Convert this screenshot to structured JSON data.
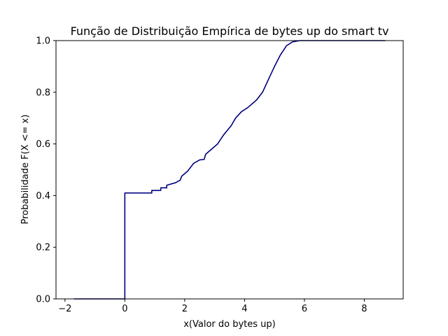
{
  "chart_data": {
    "type": "line",
    "title": "Função de Distribuição Empírica de bytes up do smart tv",
    "xlabel": "x(Valor do bytes up)",
    "ylabel": "Probabilidade F(X <= x)",
    "xlim": [
      -2.3,
      9.3
    ],
    "ylim": [
      0.0,
      1.0
    ],
    "xticks": [
      -2,
      0,
      2,
      4,
      6,
      8
    ],
    "yticks": [
      0.0,
      0.2,
      0.4,
      0.6,
      0.8,
      1.0
    ],
    "xtick_labels": [
      "−2",
      "0",
      "2",
      "4",
      "6",
      "8"
    ],
    "ytick_labels": [
      "0.0",
      "0.2",
      "0.4",
      "0.6",
      "0.8",
      "1.0"
    ],
    "grid": false,
    "series": [
      {
        "color": "#000080",
        "points": [
          [
            -1.7,
            0.0
          ],
          [
            0.0,
            0.0
          ],
          [
            0.0,
            0.41
          ],
          [
            0.9,
            0.41
          ],
          [
            0.9,
            0.42
          ],
          [
            1.2,
            0.42
          ],
          [
            1.2,
            0.43
          ],
          [
            1.4,
            0.43
          ],
          [
            1.4,
            0.44
          ],
          [
            1.7,
            0.45
          ],
          [
            1.85,
            0.46
          ],
          [
            1.9,
            0.475
          ],
          [
            2.1,
            0.495
          ],
          [
            2.3,
            0.525
          ],
          [
            2.5,
            0.538
          ],
          [
            2.65,
            0.54
          ],
          [
            2.7,
            0.56
          ],
          [
            2.9,
            0.58
          ],
          [
            3.1,
            0.6
          ],
          [
            3.3,
            0.635
          ],
          [
            3.55,
            0.67
          ],
          [
            3.7,
            0.7
          ],
          [
            3.9,
            0.725
          ],
          [
            4.1,
            0.74
          ],
          [
            4.4,
            0.77
          ],
          [
            4.6,
            0.8
          ],
          [
            4.8,
            0.85
          ],
          [
            5.0,
            0.9
          ],
          [
            5.2,
            0.945
          ],
          [
            5.4,
            0.98
          ],
          [
            5.6,
            0.995
          ],
          [
            5.85,
            1.0
          ],
          [
            8.7,
            1.0
          ]
        ]
      }
    ]
  }
}
